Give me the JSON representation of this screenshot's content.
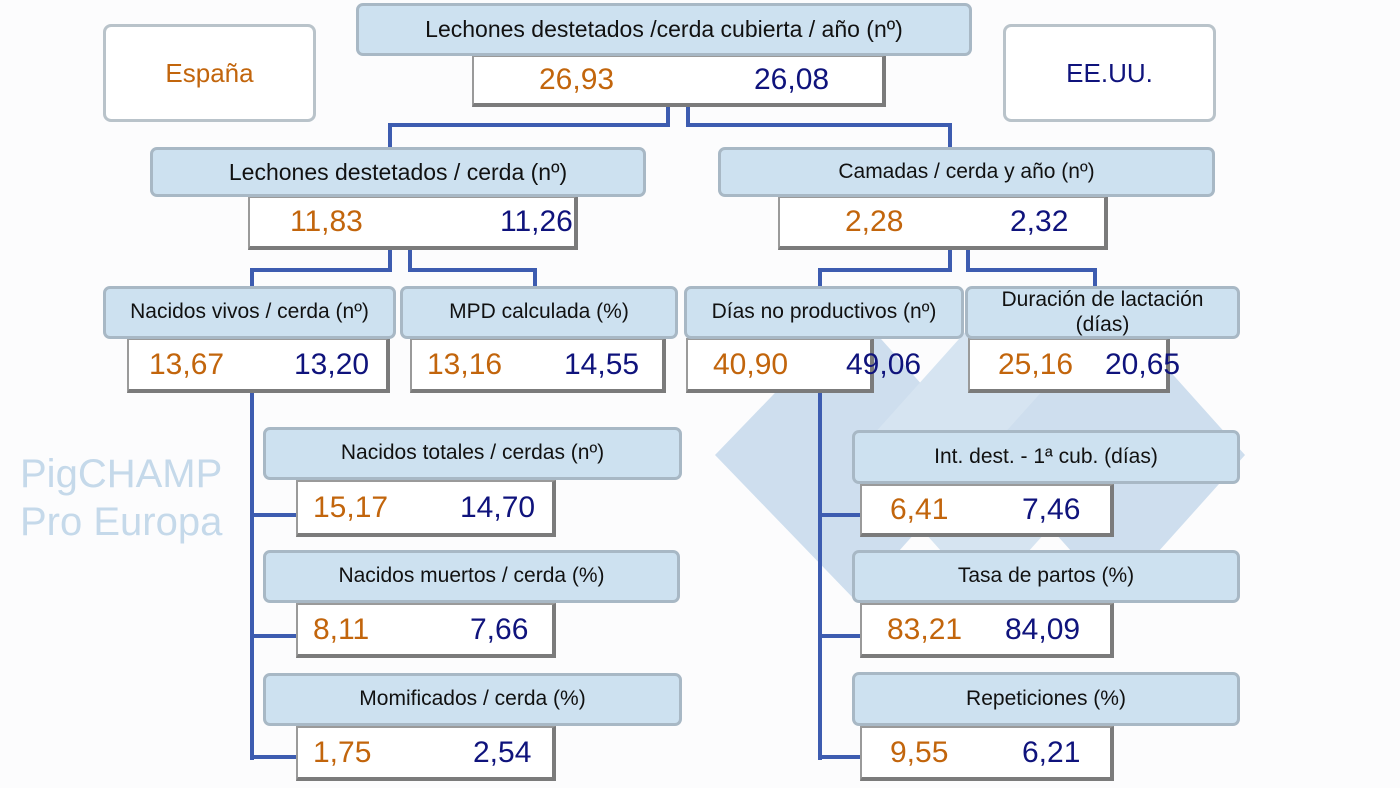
{
  "legend": {
    "spain": "España",
    "usa": "EE.UU."
  },
  "watermark": "PigCHAMP Pro Europa",
  "colors": {
    "spain": "#c2650c",
    "usa": "#0f137c",
    "header_bg": "#cde1f0",
    "connector": "#3d5cb0"
  },
  "nodes": [
    {
      "id": "weaned_per_sow_year",
      "label": "Lechones destetados /cerda cubierta / año (nº)",
      "spain": "26,93",
      "usa": "26,08"
    },
    {
      "id": "weaned_per_sow",
      "label": "Lechones destetados / cerda (nº)",
      "spain": "11,83",
      "usa": "11,26"
    },
    {
      "id": "litters_per_sow_year",
      "label": "Camadas / cerda y año (nº)",
      "spain": "2,28",
      "usa": "2,32"
    },
    {
      "id": "born_alive",
      "label": "Nacidos vivos / cerda (nº)",
      "spain": "13,67",
      "usa": "13,20"
    },
    {
      "id": "mpd",
      "label": "MPD calculada (%)",
      "spain": "13,16",
      "usa": "14,55"
    },
    {
      "id": "npd",
      "label": "Días no productivos (nº)",
      "spain": "40,90",
      "usa": "49,06"
    },
    {
      "id": "lactation",
      "label": "Duración de lactación (días)",
      "spain": "25,16",
      "usa": "20,65"
    },
    {
      "id": "total_born",
      "label": "Nacidos totales / cerdas (nº)",
      "spain": "15,17",
      "usa": "14,70"
    },
    {
      "id": "stillborn",
      "label": "Nacidos muertos / cerda (%)",
      "spain": "8,11",
      "usa": "7,66"
    },
    {
      "id": "mummified",
      "label": "Momificados / cerda (%)",
      "spain": "1,75",
      "usa": "2,54"
    },
    {
      "id": "wean_to_service",
      "label": "Int. dest. - 1ª cub. (días)",
      "spain": "6,41",
      "usa": "7,46"
    },
    {
      "id": "farrowing_rate",
      "label": "Tasa de partos (%)",
      "spain": "83,21",
      "usa": "84,09"
    },
    {
      "id": "repeats",
      "label": "Repeticiones (%)",
      "spain": "9,55",
      "usa": "6,21"
    }
  ]
}
